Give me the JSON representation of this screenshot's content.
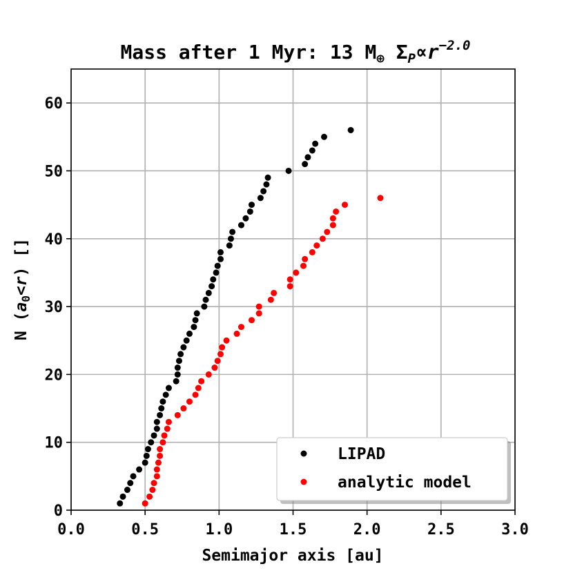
{
  "chart_data": {
    "type": "scatter",
    "title": {
      "prefix": "Mass after 1 Myr: 13 M",
      "mass_subscript": "⊕",
      "sigma": "Σ",
      "sigma_subscript": "P",
      "propto": "∝",
      "r": "r",
      "exponent": "−2.0"
    },
    "xlabel": "Semimajor axis [au]",
    "ylabel": {
      "prefix": "N (",
      "a": "a",
      "a_subscript": "0",
      "less_than": "<",
      "r": "r",
      "suffix": ") []"
    },
    "xlim": [
      0.0,
      3.0
    ],
    "ylim": [
      0,
      65
    ],
    "xticks": [
      0.0,
      0.5,
      1.0,
      1.5,
      2.0,
      2.5,
      3.0
    ],
    "xtick_labels": [
      "0.0",
      "0.5",
      "1.0",
      "1.5",
      "2.0",
      "2.5",
      "3.0"
    ],
    "yticks": [
      0,
      10,
      20,
      30,
      40,
      50,
      60
    ],
    "ytick_labels": [
      "0",
      "10",
      "20",
      "30",
      "40",
      "50",
      "60"
    ],
    "grid": true,
    "legend_position": "lower-right",
    "series": [
      {
        "name": "LIPAD",
        "color": "#000000",
        "x": [
          0.33,
          0.35,
          0.38,
          0.4,
          0.42,
          0.46,
          0.5,
          0.51,
          0.52,
          0.54,
          0.56,
          0.58,
          0.58,
          0.6,
          0.61,
          0.62,
          0.64,
          0.66,
          0.71,
          0.72,
          0.72,
          0.73,
          0.74,
          0.76,
          0.78,
          0.8,
          0.83,
          0.84,
          0.85,
          0.9,
          0.91,
          0.93,
          0.95,
          0.96,
          0.98,
          0.99,
          1.01,
          1.01,
          1.07,
          1.08,
          1.09,
          1.15,
          1.18,
          1.21,
          1.22,
          1.28,
          1.3,
          1.32,
          1.33,
          1.47,
          1.58,
          1.6,
          1.63,
          1.65,
          1.71,
          1.89
        ],
        "y": [
          1,
          2,
          3,
          4,
          5,
          6,
          7,
          8,
          9,
          10,
          11,
          12,
          13,
          14,
          15,
          16,
          17,
          18,
          19,
          20,
          21,
          22,
          23,
          24,
          25,
          26,
          27,
          28,
          29,
          30,
          31,
          32,
          33,
          34,
          35,
          36,
          37,
          38,
          39,
          40,
          41,
          42,
          43,
          44,
          45,
          46,
          47,
          48,
          49,
          50,
          51,
          52,
          53,
          54,
          55,
          56
        ]
      },
      {
        "name": "analytic model",
        "color": "#ff0000",
        "x": [
          0.5,
          0.53,
          0.55,
          0.56,
          0.58,
          0.58,
          0.59,
          0.6,
          0.6,
          0.62,
          0.63,
          0.65,
          0.66,
          0.72,
          0.76,
          0.8,
          0.84,
          0.86,
          0.88,
          0.93,
          0.97,
          0.99,
          1.01,
          1.02,
          1.05,
          1.12,
          1.15,
          1.22,
          1.27,
          1.27,
          1.35,
          1.37,
          1.48,
          1.48,
          1.52,
          1.57,
          1.58,
          1.63,
          1.66,
          1.7,
          1.73,
          1.77,
          1.77,
          1.79,
          1.85,
          2.09
        ],
        "y": [
          1,
          2,
          3,
          4,
          5,
          6,
          7,
          8,
          9,
          10,
          11,
          12,
          13,
          14,
          15,
          16,
          17,
          18,
          19,
          20,
          21,
          22,
          23,
          24,
          25,
          26,
          27,
          28,
          29,
          30,
          31,
          32,
          33,
          34,
          35,
          36,
          37,
          38,
          39,
          40,
          41,
          42,
          43,
          44,
          45,
          46
        ]
      }
    ]
  }
}
